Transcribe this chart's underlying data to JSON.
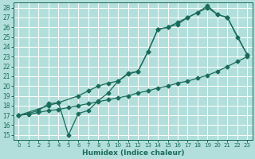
{
  "xlabel": "Humidex (Indice chaleur)",
  "xlim": [
    -0.5,
    23.5
  ],
  "ylim": [
    14.5,
    28.5
  ],
  "xticks": [
    0,
    1,
    2,
    3,
    4,
    5,
    6,
    7,
    8,
    9,
    10,
    11,
    12,
    13,
    14,
    15,
    16,
    17,
    18,
    19,
    20,
    21,
    22,
    23
  ],
  "yticks": [
    15,
    16,
    17,
    18,
    19,
    20,
    21,
    22,
    23,
    24,
    25,
    26,
    27,
    28
  ],
  "bg_color": "#b2dfdb",
  "grid_color": "#ffffff",
  "line_color": "#1a6b5a",
  "line1_x": [
    0,
    1,
    2,
    3,
    4,
    5,
    6,
    7,
    8,
    9,
    10,
    11,
    12,
    13,
    14,
    15,
    16,
    17,
    18,
    19,
    20,
    21,
    22,
    23
  ],
  "line1_y": [
    17.0,
    17.1,
    17.3,
    17.5,
    17.6,
    17.8,
    18.0,
    18.2,
    18.4,
    18.6,
    18.8,
    19.0,
    19.3,
    19.5,
    19.8,
    20.0,
    20.3,
    20.5,
    20.8,
    21.1,
    21.5,
    22.0,
    22.5,
    23.0
  ],
  "line2_x": [
    0,
    3,
    4,
    6,
    7,
    8,
    9,
    10,
    11,
    12,
    13,
    14,
    15,
    16,
    17,
    18,
    19,
    20,
    21,
    23
  ],
  "line2_y": [
    17.0,
    18.0,
    18.3,
    19.0,
    19.5,
    20.0,
    20.3,
    20.5,
    21.3,
    21.5,
    23.5,
    25.8,
    26.0,
    26.5,
    27.0,
    27.5,
    28.0,
    27.3,
    27.0,
    23.2
  ],
  "line3_x": [
    0,
    1,
    2,
    3,
    4,
    5,
    6,
    7,
    8,
    9,
    10,
    11,
    12,
    13,
    14,
    15,
    16,
    17,
    18,
    19,
    20,
    21,
    22,
    23
  ],
  "line3_y": [
    17.0,
    17.2,
    17.5,
    18.2,
    18.3,
    15.0,
    17.2,
    17.5,
    18.5,
    19.3,
    20.5,
    21.2,
    21.5,
    23.5,
    25.8,
    26.0,
    26.3,
    27.0,
    27.5,
    28.2,
    27.3,
    27.0,
    25.0,
    23.2
  ]
}
